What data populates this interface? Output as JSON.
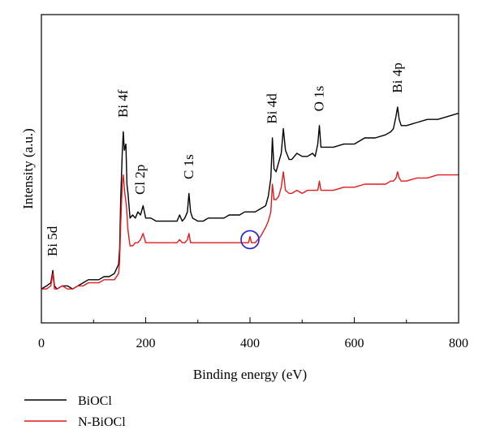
{
  "chart_data": {
    "type": "line",
    "xlabel": "Binding energy (eV)",
    "ylabel": "Intensity (a.u.)",
    "xlim": [
      0,
      800
    ],
    "x_ticks": [
      0,
      200,
      400,
      600,
      800
    ],
    "ylim": [
      0,
      100
    ],
    "y_ticks_shown": false,
    "grid": false,
    "legend_position": "bottom-left-outside",
    "series": [
      {
        "name": "BiOCl",
        "color": "#000000",
        "points": [
          [
            0,
            11
          ],
          [
            10,
            12
          ],
          [
            18,
            13
          ],
          [
            22,
            17
          ],
          [
            25,
            12
          ],
          [
            30,
            11
          ],
          [
            40,
            12
          ],
          [
            50,
            12
          ],
          [
            60,
            11
          ],
          [
            70,
            12
          ],
          [
            80,
            13
          ],
          [
            90,
            14
          ],
          [
            100,
            14
          ],
          [
            110,
            14
          ],
          [
            120,
            15
          ],
          [
            130,
            15
          ],
          [
            140,
            16
          ],
          [
            148,
            19
          ],
          [
            150,
            24
          ],
          [
            152,
            40
          ],
          [
            155,
            55
          ],
          [
            157,
            62
          ],
          [
            159,
            56
          ],
          [
            162,
            58
          ],
          [
            164,
            45
          ],
          [
            166,
            42
          ],
          [
            170,
            34
          ],
          [
            175,
            35
          ],
          [
            180,
            34
          ],
          [
            185,
            36
          ],
          [
            190,
            35
          ],
          [
            195,
            38
          ],
          [
            200,
            34
          ],
          [
            210,
            34
          ],
          [
            220,
            33
          ],
          [
            230,
            33
          ],
          [
            240,
            33
          ],
          [
            250,
            33
          ],
          [
            260,
            33
          ],
          [
            265,
            35
          ],
          [
            270,
            33
          ],
          [
            275,
            34
          ],
          [
            280,
            36
          ],
          [
            283,
            42
          ],
          [
            286,
            36
          ],
          [
            290,
            34
          ],
          [
            300,
            33
          ],
          [
            310,
            33
          ],
          [
            320,
            34
          ],
          [
            330,
            34
          ],
          [
            340,
            34
          ],
          [
            350,
            34
          ],
          [
            360,
            35
          ],
          [
            370,
            35
          ],
          [
            380,
            35
          ],
          [
            390,
            36
          ],
          [
            400,
            36
          ],
          [
            410,
            36
          ],
          [
            420,
            37
          ],
          [
            430,
            38
          ],
          [
            435,
            41
          ],
          [
            440,
            47
          ],
          [
            443,
            60
          ],
          [
            446,
            50
          ],
          [
            450,
            49
          ],
          [
            455,
            52
          ],
          [
            460,
            55
          ],
          [
            464,
            63
          ],
          [
            468,
            56
          ],
          [
            475,
            53
          ],
          [
            480,
            53
          ],
          [
            490,
            55
          ],
          [
            500,
            54
          ],
          [
            510,
            54
          ],
          [
            520,
            55
          ],
          [
            525,
            54
          ],
          [
            530,
            58
          ],
          [
            533,
            64
          ],
          [
            536,
            57
          ],
          [
            545,
            57
          ],
          [
            560,
            57
          ],
          [
            580,
            58
          ],
          [
            600,
            58
          ],
          [
            620,
            60
          ],
          [
            640,
            60
          ],
          [
            660,
            61
          ],
          [
            670,
            62
          ],
          [
            675,
            63
          ],
          [
            680,
            67
          ],
          [
            683,
            70
          ],
          [
            686,
            66
          ],
          [
            690,
            64
          ],
          [
            700,
            64
          ],
          [
            720,
            65
          ],
          [
            740,
            66
          ],
          [
            760,
            66
          ],
          [
            780,
            67
          ],
          [
            800,
            68
          ]
        ]
      },
      {
        "name": "N-BiOCl",
        "color": "#e31a1c",
        "points": [
          [
            0,
            11
          ],
          [
            10,
            11
          ],
          [
            18,
            12
          ],
          [
            22,
            16
          ],
          [
            25,
            11
          ],
          [
            30,
            11
          ],
          [
            40,
            12
          ],
          [
            50,
            11
          ],
          [
            60,
            11
          ],
          [
            70,
            12
          ],
          [
            80,
            12
          ],
          [
            90,
            13
          ],
          [
            100,
            13
          ],
          [
            110,
            13
          ],
          [
            120,
            14
          ],
          [
            130,
            14
          ],
          [
            140,
            14
          ],
          [
            148,
            16
          ],
          [
            150,
            20
          ],
          [
            152,
            32
          ],
          [
            155,
            45
          ],
          [
            157,
            48
          ],
          [
            160,
            42
          ],
          [
            163,
            38
          ],
          [
            166,
            30
          ],
          [
            170,
            25
          ],
          [
            175,
            25
          ],
          [
            180,
            26
          ],
          [
            185,
            26
          ],
          [
            190,
            27
          ],
          [
            195,
            29
          ],
          [
            200,
            26
          ],
          [
            210,
            26
          ],
          [
            220,
            26
          ],
          [
            230,
            26
          ],
          [
            240,
            26
          ],
          [
            250,
            26
          ],
          [
            260,
            26
          ],
          [
            265,
            27
          ],
          [
            270,
            26
          ],
          [
            275,
            26
          ],
          [
            280,
            27
          ],
          [
            283,
            29
          ],
          [
            286,
            26
          ],
          [
            290,
            26
          ],
          [
            300,
            26
          ],
          [
            310,
            26
          ],
          [
            320,
            26
          ],
          [
            330,
            26
          ],
          [
            340,
            26
          ],
          [
            350,
            26
          ],
          [
            360,
            26
          ],
          [
            370,
            26
          ],
          [
            380,
            26
          ],
          [
            390,
            26
          ],
          [
            397,
            26
          ],
          [
            400,
            28
          ],
          [
            403,
            26
          ],
          [
            410,
            26
          ],
          [
            420,
            28
          ],
          [
            430,
            31
          ],
          [
            435,
            33
          ],
          [
            440,
            36
          ],
          [
            443,
            45
          ],
          [
            446,
            40
          ],
          [
            450,
            40
          ],
          [
            455,
            41
          ],
          [
            460,
            44
          ],
          [
            464,
            49
          ],
          [
            468,
            43
          ],
          [
            475,
            42
          ],
          [
            480,
            42
          ],
          [
            490,
            43
          ],
          [
            500,
            42
          ],
          [
            510,
            43
          ],
          [
            520,
            43
          ],
          [
            525,
            43
          ],
          [
            530,
            43
          ],
          [
            533,
            46
          ],
          [
            536,
            43
          ],
          [
            545,
            43
          ],
          [
            560,
            43
          ],
          [
            580,
            44
          ],
          [
            600,
            44
          ],
          [
            620,
            45
          ],
          [
            640,
            45
          ],
          [
            660,
            45
          ],
          [
            670,
            46
          ],
          [
            675,
            46
          ],
          [
            680,
            47
          ],
          [
            683,
            49
          ],
          [
            686,
            47
          ],
          [
            690,
            46
          ],
          [
            700,
            46
          ],
          [
            720,
            47
          ],
          [
            740,
            47
          ],
          [
            760,
            48
          ],
          [
            780,
            48
          ],
          [
            800,
            48
          ]
        ]
      }
    ],
    "annotations": [
      {
        "text": "Bi 5d",
        "x": 22,
        "y": 20
      },
      {
        "text": "Bi 4f",
        "x": 157,
        "y": 65
      },
      {
        "text": "Cl 2p",
        "x": 190,
        "y": 40
      },
      {
        "text": "C 1s",
        "x": 283,
        "y": 45
      },
      {
        "text": "Bi 4d",
        "x": 443,
        "y": 63
      },
      {
        "text": "O 1s",
        "x": 533,
        "y": 67
      },
      {
        "text": "Bi 4p",
        "x": 683,
        "y": 73
      }
    ],
    "highlight": {
      "shape": "circle",
      "color": "#1f1fd6",
      "x": 400,
      "y": 27
    }
  }
}
